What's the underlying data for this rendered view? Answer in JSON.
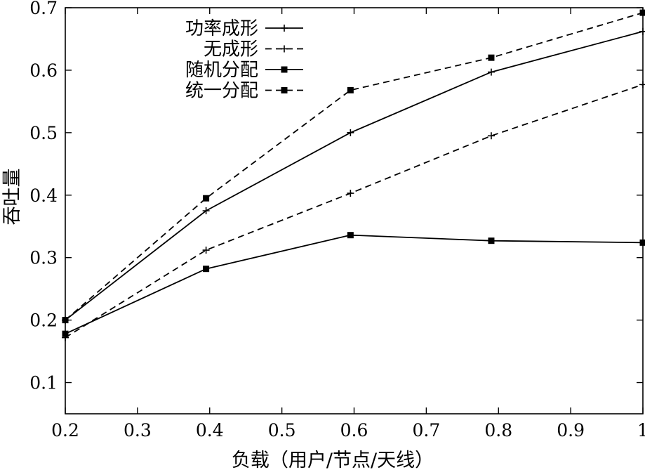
{
  "chart_data": {
    "type": "line",
    "xlabel": "负载（用户/节点/天线）",
    "ylabel": "吞吐量",
    "xlim": [
      0.2,
      1.0
    ],
    "ylim": [
      0.05,
      0.7
    ],
    "xticks": [
      0.2,
      0.3,
      0.4,
      0.5,
      0.6,
      0.7,
      0.8,
      0.9,
      1.0
    ],
    "xtick_labels": [
      "0.2",
      "0.3",
      "0.4",
      "0.5",
      "0.6",
      "0.7",
      "0.8",
      "0.9",
      "1"
    ],
    "yticks": [
      0.1,
      0.2,
      0.3,
      0.4,
      0.5,
      0.6,
      0.7
    ],
    "ytick_labels": [
      "0.1",
      "0.2",
      "0.3",
      "0.4",
      "0.5",
      "0.6",
      "0.7"
    ],
    "grid": false,
    "legend_position": "top-left",
    "series": [
      {
        "name": "功率成形",
        "line": "solid",
        "marker": "plus",
        "x": [
          0.2,
          0.395,
          0.595,
          0.79,
          1.0
        ],
        "y": [
          0.2,
          0.375,
          0.5,
          0.597,
          0.662
        ]
      },
      {
        "name": "无成形",
        "line": "dashed",
        "marker": "plus",
        "x": [
          0.2,
          0.395,
          0.595,
          0.79,
          1.0
        ],
        "y": [
          0.172,
          0.312,
          0.403,
          0.495,
          0.577
        ]
      },
      {
        "name": "随机分配",
        "line": "solid",
        "marker": "square",
        "x": [
          0.2,
          0.395,
          0.595,
          0.79,
          1.0
        ],
        "y": [
          0.178,
          0.282,
          0.336,
          0.327,
          0.324
        ]
      },
      {
        "name": "统一分配",
        "line": "dashed",
        "marker": "square",
        "x": [
          0.2,
          0.395,
          0.595,
          0.79,
          1.0
        ],
        "y": [
          0.2,
          0.395,
          0.568,
          0.62,
          0.692
        ]
      }
    ],
    "colors": {
      "line": "#000000",
      "background": "#ffffff"
    }
  }
}
